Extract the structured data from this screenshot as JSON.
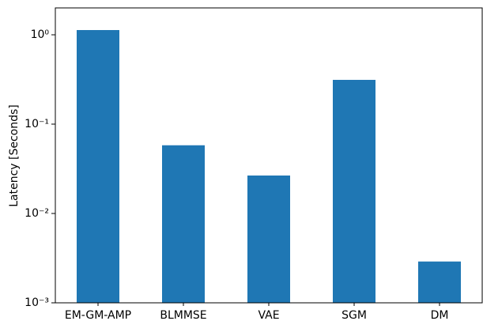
{
  "chart_data": {
    "type": "bar",
    "ylabel": "Latency [Seconds]",
    "categories": [
      "EM-GM-AMP",
      "BLMMSE",
      "VAE",
      "SGM",
      "DM"
    ],
    "values": [
      1.13,
      0.058,
      0.0266,
      0.313,
      0.0029
    ],
    "color": "#1f77b4",
    "log_y": true,
    "ylim": [
      0.001,
      2
    ],
    "yticks": [
      {
        "value": 0.001,
        "label": "10⁻³"
      },
      {
        "value": 0.01,
        "label": "10⁻²"
      },
      {
        "value": 0.1,
        "label": "10⁻¹"
      },
      {
        "value": 1,
        "label": "10⁰"
      }
    ]
  }
}
